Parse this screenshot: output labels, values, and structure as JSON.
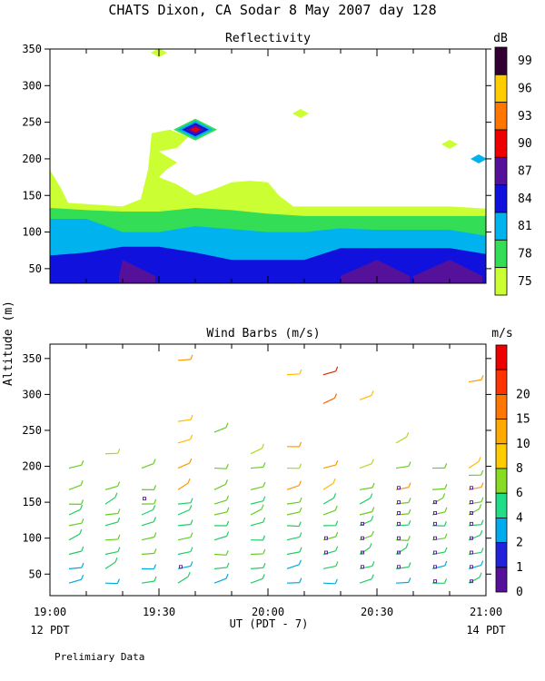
{
  "title": "CHATS Dixon, CA  Sodar   8 May 2007  day 128",
  "ylabel": "Altitude (m)",
  "footer": {
    "xaxis_label": "UT  (PDT - 7)",
    "left_local": "12 PDT",
    "right_local": "14 PDT",
    "note": "Prelimiary Data"
  },
  "chart_data": [
    {
      "type": "heatmap",
      "title": "Reflectivity",
      "colorbar_unit": "dB",
      "x_ticks": [
        "19:00",
        "19:30",
        "20:00",
        "20:30",
        "21:00"
      ],
      "y_ticks": [
        50,
        100,
        150,
        200,
        250,
        300,
        350
      ],
      "ylim": [
        30,
        350
      ],
      "xlim_minutes": [
        0,
        120
      ],
      "colorbar_labels": [
        "75",
        "78",
        "81",
        "84",
        "87",
        "90",
        "93",
        "96",
        "99"
      ],
      "colorbar_colors": [
        "#ccff33",
        "#33dd55",
        "#00b3ee",
        "#1111dd",
        "#551199",
        "#ee0000",
        "#ff7700",
        "#ffcc00",
        "#330033"
      ],
      "bands": [
        {
          "level": "75",
          "color": "#ccff33",
          "top": [
            [
              0,
              185
            ],
            [
              3,
              160
            ],
            [
              5,
              140
            ],
            [
              20,
              135
            ],
            [
              25,
              145
            ],
            [
              27,
              185
            ],
            [
              28,
              235
            ],
            [
              33,
              240
            ],
            [
              38,
              230
            ],
            [
              35,
              215
            ],
            [
              30,
              210
            ],
            [
              35,
              195
            ],
            [
              32,
              185
            ],
            [
              30,
              175
            ],
            [
              35,
              165
            ],
            [
              40,
              150
            ],
            [
              45,
              158
            ],
            [
              50,
              168
            ],
            [
              55,
              170
            ],
            [
              60,
              168
            ],
            [
              63,
              150
            ],
            [
              67,
              135
            ],
            [
              80,
              135
            ],
            [
              90,
              135
            ],
            [
              100,
              135
            ],
            [
              110,
              135
            ],
            [
              120,
              132
            ]
          ]
        },
        {
          "level": "78",
          "color": "#33dd55",
          "top": [
            [
              0,
              133
            ],
            [
              10,
              130
            ],
            [
              20,
              128
            ],
            [
              30,
              128
            ],
            [
              40,
              133
            ],
            [
              50,
              130
            ],
            [
              60,
              125
            ],
            [
              70,
              122
            ],
            [
              80,
              122
            ],
            [
              90,
              122
            ],
            [
              100,
              122
            ],
            [
              110,
              122
            ],
            [
              120,
              122
            ]
          ]
        },
        {
          "level": "81",
          "color": "#00b3ee",
          "top": [
            [
              0,
              118
            ],
            [
              10,
              118
            ],
            [
              20,
              100
            ],
            [
              30,
              100
            ],
            [
              40,
              108
            ],
            [
              50,
              104
            ],
            [
              60,
              100
            ],
            [
              70,
              100
            ],
            [
              80,
              105
            ],
            [
              90,
              103
            ],
            [
              100,
              103
            ],
            [
              110,
              103
            ],
            [
              120,
              95
            ]
          ]
        },
        {
          "level": "84",
          "color": "#1111dd",
          "top": [
            [
              0,
              68
            ],
            [
              10,
              72
            ],
            [
              20,
              80
            ],
            [
              30,
              80
            ],
            [
              40,
              72
            ],
            [
              50,
              62
            ],
            [
              60,
              62
            ],
            [
              70,
              62
            ],
            [
              80,
              78
            ],
            [
              90,
              78
            ],
            [
              100,
              78
            ],
            [
              110,
              78
            ],
            [
              120,
              70
            ]
          ]
        },
        {
          "level": "87",
          "color": "#551199",
          "top": [
            [
              19,
              40
            ],
            [
              20,
              62
            ],
            [
              29,
              40
            ]
          ]
        },
        {
          "level": "87",
          "color": "#551199",
          "top": [
            [
              80,
              40
            ],
            [
              90,
              62
            ],
            [
              99,
              40
            ]
          ]
        },
        {
          "level": "87",
          "color": "#551199",
          "top": [
            [
              100,
              40
            ],
            [
              110,
              62
            ],
            [
              119,
              40
            ]
          ]
        }
      ],
      "cells": [
        {
          "t": 30,
          "h": 345,
          "color": "#ccff33"
        },
        {
          "t": 69,
          "h": 262,
          "color": "#ccff33"
        },
        {
          "t": 110,
          "h": 220,
          "color": "#ccff33"
        },
        {
          "t": 118,
          "h": 200,
          "color": "#00b3ee"
        }
      ],
      "hotspot": {
        "t": 40,
        "h": 240,
        "colors": [
          "#33dd55",
          "#00b3ee",
          "#1111dd",
          "#551199",
          "#ee0000"
        ]
      }
    },
    {
      "type": "scatter",
      "title": "Wind Barbs (m/s)",
      "colorbar_unit": "m/s",
      "x_ticks": [
        "19:00",
        "19:30",
        "20:00",
        "20:30",
        "21:00"
      ],
      "y_ticks": [
        50,
        100,
        150,
        200,
        250,
        300,
        350
      ],
      "ylim": [
        20,
        370
      ],
      "xlim_minutes": [
        0,
        120
      ],
      "colorbar_labels": [
        "0",
        "1",
        "2",
        "4",
        "6",
        "8",
        "10",
        "15",
        "20"
      ],
      "colorbar_colors": [
        "#551199",
        "#2222dd",
        "#00aaee",
        "#22dd88",
        "#88dd22",
        "#ffcc00",
        "#ffaa00",
        "#ff7700",
        "#ff3300",
        "#ee0000"
      ],
      "barb_columns": [
        {
          "t": 7,
          "h": [
            40,
            60,
            80,
            100,
            120,
            135,
            150,
            170,
            200
          ]
        },
        {
          "t": 17,
          "h": [
            40,
            60,
            80,
            100,
            120,
            135,
            150,
            170,
            220
          ]
        },
        {
          "t": 27,
          "h": [
            40,
            60,
            80,
            100,
            120,
            135,
            150,
            170,
            200
          ]
        },
        {
          "t": 37,
          "h": [
            40,
            60,
            80,
            100,
            120,
            135,
            150,
            170,
            200,
            235,
            265,
            350
          ]
        },
        {
          "t": 47,
          "h": [
            40,
            60,
            80,
            100,
            120,
            135,
            150,
            170,
            200,
            250
          ]
        },
        {
          "t": 57,
          "h": [
            40,
            60,
            80,
            100,
            120,
            135,
            150,
            170,
            200,
            220
          ]
        },
        {
          "t": 67,
          "h": [
            40,
            60,
            80,
            100,
            120,
            135,
            150,
            170,
            200,
            230,
            330
          ]
        },
        {
          "t": 77,
          "h": [
            40,
            60,
            80,
            100,
            120,
            135,
            150,
            170,
            200,
            290,
            330
          ]
        },
        {
          "t": 87,
          "h": [
            40,
            60,
            80,
            100,
            120,
            135,
            150,
            170,
            200,
            295
          ]
        },
        {
          "t": 97,
          "h": [
            40,
            60,
            80,
            100,
            120,
            135,
            150,
            170,
            200,
            235
          ]
        },
        {
          "t": 107,
          "h": [
            40,
            60,
            80,
            100,
            120,
            135,
            150,
            170,
            200
          ]
        },
        {
          "t": 117,
          "h": [
            40,
            60,
            80,
            100,
            120,
            135,
            150,
            170,
            190,
            200,
            320
          ]
        }
      ],
      "calm_points": [
        {
          "t": 26,
          "h": [
            155
          ]
        },
        {
          "t": 36,
          "h": [
            60
          ]
        },
        {
          "t": 76,
          "h": [
            80,
            100
          ]
        },
        {
          "t": 86,
          "h": [
            60,
            80,
            100,
            120
          ]
        },
        {
          "t": 96,
          "h": [
            60,
            80,
            100,
            120,
            135,
            150,
            170
          ]
        },
        {
          "t": 106,
          "h": [
            40,
            60,
            80,
            100,
            120,
            135,
            150
          ]
        },
        {
          "t": 116,
          "h": [
            40,
            60,
            80,
            100,
            120,
            135,
            150,
            170
          ]
        }
      ]
    }
  ]
}
